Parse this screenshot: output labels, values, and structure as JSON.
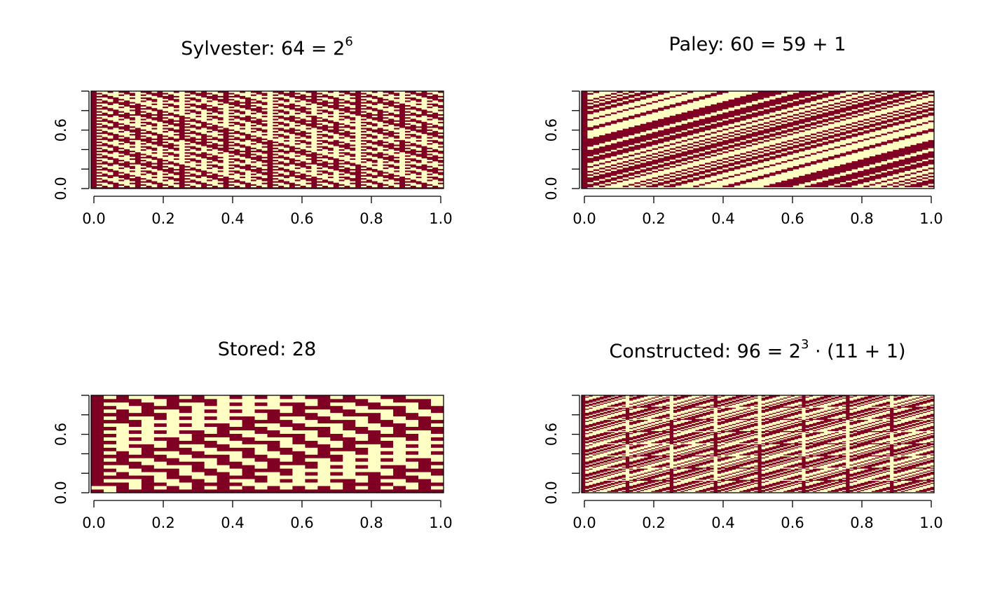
{
  "colors": {
    "dark": "#7f0023",
    "light": "#ffffc4"
  },
  "chart_data": [
    {
      "type": "heatmap",
      "id": "sylvester",
      "construction": "sylvester",
      "order": 64,
      "title": {
        "prefix": "Sylvester: 64 = 2",
        "sup": "6",
        "suffix": ""
      },
      "xlim": [
        0,
        1
      ],
      "ylim": [
        0,
        1
      ],
      "x_ticks": [
        0,
        0.2,
        0.4,
        0.6,
        0.8,
        1
      ],
      "x_tick_labels": [
        "0.0",
        "0.2",
        "0.4",
        "0.6",
        "0.8",
        "1.0"
      ],
      "y_ticks": [
        0,
        0.2,
        0.4,
        0.6,
        0.8,
        1
      ],
      "y_tick_labels": [
        "0.0",
        "",
        "",
        "0.6",
        "",
        ""
      ],
      "colors": [
        "dark",
        "light"
      ]
    },
    {
      "type": "heatmap",
      "id": "paley",
      "construction": "paley",
      "order": 60,
      "title": {
        "prefix": "Paley: 60 = 59 + 1",
        "sup": "",
        "suffix": ""
      },
      "xlim": [
        0,
        1
      ],
      "ylim": [
        0,
        1
      ],
      "x_ticks": [
        0,
        0.2,
        0.4,
        0.6,
        0.8,
        1
      ],
      "x_tick_labels": [
        "0.0",
        "0.2",
        "0.4",
        "0.6",
        "0.8",
        "1.0"
      ],
      "y_ticks": [
        0,
        0.2,
        0.4,
        0.6,
        0.8,
        1
      ],
      "y_tick_labels": [
        "0.0",
        "",
        "",
        "0.6",
        "",
        ""
      ],
      "colors": [
        "dark",
        "light"
      ]
    },
    {
      "type": "heatmap",
      "id": "stored",
      "construction": "stored",
      "order": 28,
      "title": {
        "prefix": "Stored: 28",
        "sup": "",
        "suffix": ""
      },
      "xlim": [
        0,
        1
      ],
      "ylim": [
        0,
        1
      ],
      "x_ticks": [
        0,
        0.2,
        0.4,
        0.6,
        0.8,
        1
      ],
      "x_tick_labels": [
        "0.0",
        "0.2",
        "0.4",
        "0.6",
        "0.8",
        "1.0"
      ],
      "y_ticks": [
        0,
        0.2,
        0.4,
        0.6,
        0.8,
        1
      ],
      "y_tick_labels": [
        "0.0",
        "",
        "",
        "0.6",
        "",
        ""
      ],
      "colors": [
        "dark",
        "light"
      ]
    },
    {
      "type": "heatmap",
      "id": "constructed",
      "construction": "kronecker",
      "order": 96,
      "title": {
        "prefix": "Constructed: 96 = 2",
        "sup": "3",
        "suffix": " · (11 + 1)"
      },
      "xlim": [
        0,
        1
      ],
      "ylim": [
        0,
        1
      ],
      "x_ticks": [
        0,
        0.2,
        0.4,
        0.6,
        0.8,
        1
      ],
      "x_tick_labels": [
        "0.0",
        "0.2",
        "0.4",
        "0.6",
        "0.8",
        "1.0"
      ],
      "y_ticks": [
        0,
        0.2,
        0.4,
        0.6,
        0.8,
        1
      ],
      "y_tick_labels": [
        "0.0",
        "",
        "",
        "0.6",
        "",
        ""
      ],
      "colors": [
        "dark",
        "light"
      ]
    }
  ]
}
